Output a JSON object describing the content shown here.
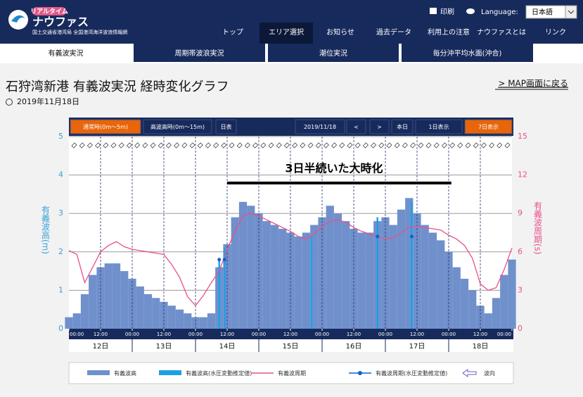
{
  "header": {
    "logo_small": "リアルタイム",
    "logo": "ナウファス",
    "logo_sub": "国土交通省港湾局 全国港湾海洋波浪情報網",
    "print": "印刷",
    "language_label": "Language:",
    "language": "日本語",
    "nav": [
      "トップ",
      "エリア選択",
      "お知らせ",
      "過去データ",
      "利用上の注意",
      "ナウファスとは",
      "リンク"
    ],
    "nav_active": 1
  },
  "tabs": [
    "有義波実況",
    "周期帯波浪実況",
    "潮位実況",
    "毎分沖平均水面(沖合)"
  ],
  "tab_active": 0,
  "page": {
    "title": "石狩湾新港 有義波実況 経時変化グラフ",
    "date": "2019年11月18日",
    "back_link": "> MAP画面に戻る"
  },
  "toolbar": [
    "通常時(0m～5m)",
    "高波高時(0m～15m)",
    "日表",
    "2019/11/18",
    "<",
    ">",
    "本日",
    "1日表示",
    "7日表示"
  ],
  "chart_data": {
    "type": "bar-line",
    "annotation": "3日半続いた大時化",
    "annotation_span": [
      60,
      145
    ],
    "ylabel": "有義波高(m)",
    "y2label": "有義波周期(s)",
    "xlim": [
      0,
      168
    ],
    "xticks": [
      {
        "value": 0,
        "label": "00:00"
      },
      {
        "value": 12,
        "label": "12:00"
      },
      {
        "value": 24,
        "label": "00:00"
      },
      {
        "value": 36,
        "label": "12:00"
      },
      {
        "value": 48,
        "label": "00:00"
      },
      {
        "value": 60,
        "label": "12:00"
      },
      {
        "value": 72,
        "label": "00:00"
      },
      {
        "value": 84,
        "label": "12:00"
      },
      {
        "value": 96,
        "label": "00:00"
      },
      {
        "value": 108,
        "label": "12:00"
      },
      {
        "value": 120,
        "label": "00:00"
      },
      {
        "value": 132,
        "label": "12:00"
      },
      {
        "value": 144,
        "label": "00:00"
      },
      {
        "value": 156,
        "label": "12:00"
      },
      {
        "value": 168,
        "label": "00:00"
      }
    ],
    "day_ticks": [
      {
        "value": 12,
        "label": "12日"
      },
      {
        "value": 36,
        "label": "13日"
      },
      {
        "value": 60,
        "label": "14日"
      },
      {
        "value": 84,
        "label": "15日"
      },
      {
        "value": 108,
        "label": "16日"
      },
      {
        "value": 132,
        "label": "17日"
      },
      {
        "value": 156,
        "label": "18日"
      }
    ],
    "ylim": [
      0,
      5
    ],
    "yticks": [
      0,
      1,
      2,
      3,
      4,
      5
    ],
    "y2lim": [
      0,
      15
    ],
    "y2ticks": [
      0,
      3,
      6,
      9,
      12,
      15
    ],
    "direction_legend": "波向",
    "x": [
      0,
      3,
      6,
      9,
      12,
      15,
      18,
      21,
      24,
      27,
      30,
      33,
      36,
      39,
      42,
      45,
      48,
      51,
      54,
      57,
      60,
      63,
      66,
      69,
      72,
      75,
      78,
      81,
      84,
      87,
      90,
      93,
      96,
      99,
      102,
      105,
      108,
      111,
      114,
      117,
      120,
      123,
      126,
      129,
      132,
      135,
      138,
      141,
      144,
      147,
      150,
      153,
      156,
      159,
      162,
      165,
      168
    ],
    "series": [
      {
        "name": "有義波高",
        "color": "#7090cc",
        "kind": "bar",
        "values": [
          0.3,
          0.4,
          0.9,
          1.4,
          1.6,
          1.7,
          1.7,
          1.5,
          1.3,
          1.1,
          0.9,
          0.8,
          0.7,
          0.6,
          0.5,
          0.4,
          0.3,
          0.3,
          0.4,
          1.6,
          2.2,
          2.9,
          3.3,
          3.2,
          3.0,
          2.8,
          2.7,
          2.6,
          2.5,
          2.4,
          2.5,
          2.7,
          2.9,
          3.2,
          3.0,
          2.8,
          2.6,
          2.5,
          2.5,
          2.8,
          2.9,
          2.7,
          3.1,
          3.4,
          3.0,
          2.7,
          2.5,
          2.3,
          2.0,
          1.6,
          1.3,
          1.0,
          0.6,
          0.4,
          0.8,
          1.4,
          1.8
        ]
      },
      {
        "name": "有義波高(水圧変動推定値)",
        "color": "#1ea0e6",
        "kind": "spike",
        "x": [
          57,
          59,
          92,
          117,
          130
        ],
        "values": [
          1.8,
          2.1,
          2.4,
          2.9,
          3.3
        ]
      },
      {
        "name": "有義波周期",
        "color": "#e8508a",
        "kind": "line",
        "axis": "y2",
        "values": [
          6.1,
          5.8,
          3.6,
          4.8,
          6.0,
          6.5,
          6.8,
          6.4,
          6.2,
          6.1,
          6.0,
          5.9,
          5.8,
          5.0,
          4.0,
          2.5,
          1.8,
          2.6,
          3.6,
          4.5,
          6.2,
          7.6,
          8.8,
          9.0,
          8.8,
          8.5,
          8.2,
          7.9,
          7.6,
          7.2,
          7.0,
          7.4,
          8.0,
          8.4,
          8.5,
          8.3,
          7.9,
          7.6,
          7.4,
          7.2,
          7.0,
          7.1,
          7.5,
          7.9,
          8.0,
          7.9,
          7.8,
          7.7,
          7.3,
          7.0,
          6.5,
          5.5,
          3.5,
          3.0,
          3.2,
          4.6,
          6.3
        ]
      },
      {
        "name": "有義波周期(水圧変動推定値)",
        "color": "#1060d0",
        "kind": "dot",
        "axis": "y2",
        "x": [
          57,
          59,
          117,
          130
        ],
        "values": [
          5.4,
          5.4,
          7.2,
          7.2
        ]
      }
    ]
  }
}
